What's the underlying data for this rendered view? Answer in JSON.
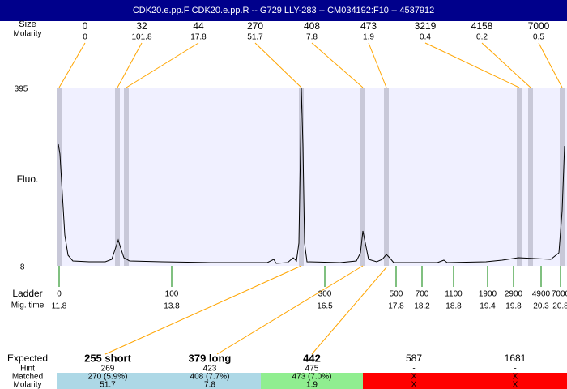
{
  "header": {
    "title": "CDK20.e.pp.F  CDK20.e.pp.R -- G729 LLY-283 -- CM034192:F10 -- 4537912"
  },
  "peaks": {
    "size_label": "Size",
    "molarity_label": "Molarity",
    "sizes": [
      "0",
      "32",
      "44",
      "270",
      "408",
      "473",
      "3219",
      "4158",
      "7000"
    ],
    "molarities": [
      "0",
      "101.8",
      "17.8",
      "51.7",
      "7.8",
      "1.9",
      "0.4",
      "0.2",
      "0.5"
    ]
  },
  "fluo": {
    "label": "Fluo.",
    "max": "395",
    "min": "-8"
  },
  "ladder": {
    "label": "Ladder",
    "time_label": "Mig. time",
    "sizes": [
      "0",
      "100",
      "300",
      "500",
      "700",
      "1100",
      "1900",
      "2900",
      "4900",
      "7000"
    ],
    "times": [
      "11.8",
      "13.8",
      "16.5",
      "17.8",
      "18.2",
      "18.8",
      "19.4",
      "19.8",
      "20.3",
      "20.8"
    ]
  },
  "table": {
    "row_labels": [
      "Expected",
      "Hint",
      "Matched",
      "Molarity"
    ],
    "expected": [
      "255 short",
      "379 long",
      "442",
      "587",
      "1681"
    ],
    "hint": [
      "269",
      "423",
      "475",
      "-",
      "-"
    ],
    "matched": [
      "270 (5.9%)",
      "408 (7.7%)",
      "473 (7.0%)",
      "X",
      "X"
    ],
    "molarity": [
      "51.7",
      "7.8",
      "1.9",
      "X",
      "X"
    ]
  }
}
